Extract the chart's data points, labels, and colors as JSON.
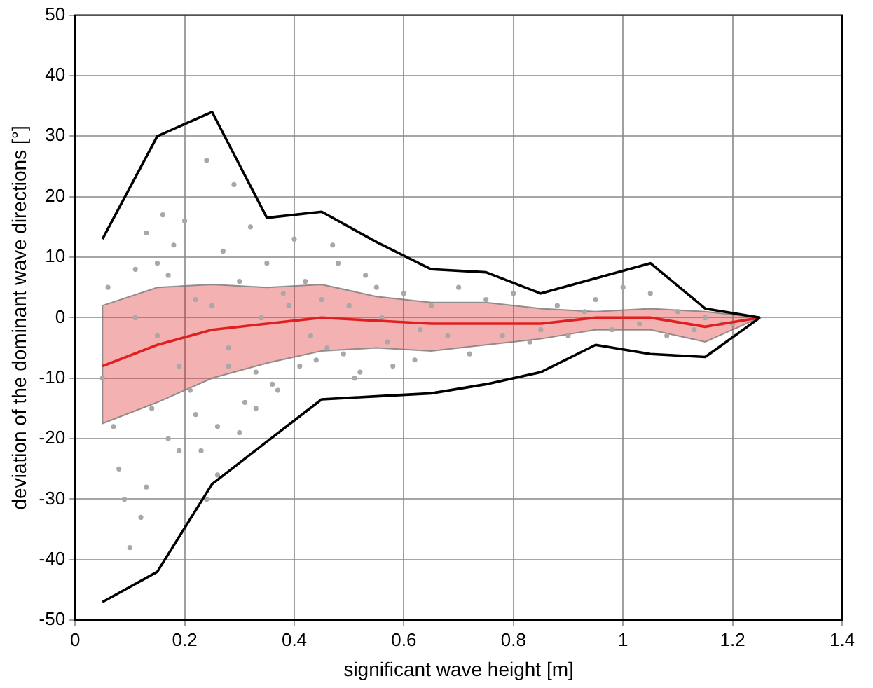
{
  "chart_data": {
    "type": "line",
    "xlabel": "significant wave height [m]",
    "ylabel": "deviation of the dominant wave directions [°]",
    "xlim": [
      0,
      1.4
    ],
    "xticks": [
      0,
      0.2,
      0.4,
      0.6,
      0.8,
      1,
      1.2,
      1.4
    ],
    "ylim": [
      -50,
      50
    ],
    "yticks": [
      -50,
      -40,
      -30,
      -20,
      -10,
      0,
      10,
      20,
      30,
      40,
      50
    ],
    "grid": true,
    "legend": false,
    "series": [
      {
        "type": "scatter",
        "color": "#a8a8a8",
        "marker": "circle",
        "x": [
          0.05,
          0.06,
          0.08,
          0.1,
          0.11,
          0.12,
          0.13,
          0.14,
          0.15,
          0.16,
          0.17,
          0.18,
          0.19,
          0.2,
          0.21,
          0.22,
          0.23,
          0.24,
          0.25,
          0.26,
          0.27,
          0.28,
          0.29,
          0.3,
          0.31,
          0.32,
          0.33,
          0.35,
          0.36,
          0.38,
          0.4,
          0.41,
          0.42,
          0.44,
          0.45,
          0.47,
          0.49,
          0.5,
          0.52,
          0.55,
          0.57,
          0.6,
          0.62,
          0.65,
          0.68,
          0.7,
          0.72,
          0.75,
          0.78,
          0.8,
          0.83,
          0.85,
          0.88,
          0.9,
          0.93,
          0.95,
          0.98,
          1.0,
          1.03,
          1.05,
          1.08,
          1.1,
          1.13,
          1.15,
          1.18,
          1.2,
          0.07,
          0.09,
          0.13,
          0.17,
          0.19,
          0.22,
          0.26,
          0.3,
          0.34,
          0.37,
          0.43,
          0.48,
          0.53,
          0.58,
          0.63,
          0.11,
          0.15,
          0.24,
          0.28,
          0.33,
          0.39,
          0.46,
          0.51,
          0.56
        ],
        "values": [
          -10,
          5,
          -25,
          -38,
          8,
          -33,
          14,
          -15,
          -3,
          17,
          -20,
          12,
          -8,
          16,
          -12,
          3,
          -22,
          26,
          2,
          -18,
          11,
          -5,
          22,
          6,
          -14,
          15,
          -9,
          9,
          -11,
          4,
          13,
          -8,
          6,
          -7,
          3,
          12,
          -6,
          2,
          -9,
          5,
          -4,
          4,
          -7,
          2,
          -3,
          5,
          -6,
          3,
          -3,
          4,
          -4,
          -2,
          2,
          -3,
          1,
          3,
          -2,
          5,
          -1,
          4,
          -3,
          1,
          -2,
          0,
          -1,
          -1,
          -18,
          -30,
          -28,
          7,
          -22,
          -16,
          -26,
          -19,
          0,
          -12,
          -3,
          9,
          7,
          -8,
          -2,
          0,
          9,
          -30,
          -8,
          -15,
          2,
          -5,
          -10,
          0
        ]
      },
      {
        "color": "#000000",
        "x": [
          0.05,
          0.15,
          0.25,
          0.35,
          0.45,
          0.55,
          0.65,
          0.75,
          0.85,
          0.95,
          1.05,
          1.15,
          1.25
        ],
        "values": [
          13,
          30,
          34,
          16.5,
          17.5,
          12.5,
          8,
          7.5,
          4,
          6.5,
          9,
          1.5,
          0
        ]
      },
      {
        "color": "#000000",
        "x": [
          0.05,
          0.15,
          0.25,
          0.35,
          0.45,
          0.55,
          0.65,
          0.75,
          0.85,
          0.95,
          1.05,
          1.15,
          1.25
        ],
        "values": [
          -47,
          -42,
          -27.5,
          -20.5,
          -13.5,
          -13,
          -12.5,
          -11,
          -9,
          -4.5,
          -6,
          -6.5,
          0
        ]
      },
      {
        "color": "#e02020",
        "x": [
          0.05,
          0.15,
          0.25,
          0.35,
          0.45,
          0.55,
          0.65,
          0.75,
          0.85,
          0.95,
          1.05,
          1.15,
          1.25
        ],
        "values": [
          -8,
          -4.5,
          -2,
          -1,
          0,
          -0.5,
          -1,
          -1,
          -1,
          0,
          0,
          -1.5,
          0
        ],
        "lower": [
          -17.5,
          -14,
          -10,
          -7.5,
          -5.5,
          -5,
          -5.5,
          -4.5,
          -3.5,
          -2,
          -2,
          -4,
          0
        ],
        "upper": [
          2,
          5,
          5.5,
          5,
          5.5,
          3.5,
          2.5,
          2.5,
          1.5,
          1,
          1.5,
          1,
          0
        ]
      }
    ]
  }
}
